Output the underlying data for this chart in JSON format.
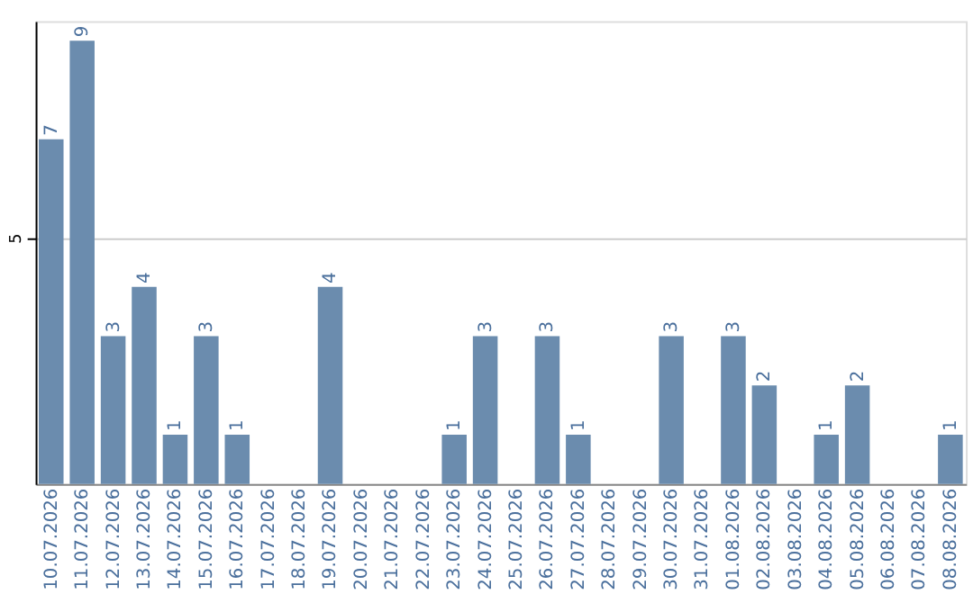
{
  "chart_data": {
    "type": "bar",
    "categories": [
      "10.07.2026",
      "11.07.2026",
      "12.07.2026",
      "13.07.2026",
      "14.07.2026",
      "15.07.2026",
      "16.07.2026",
      "17.07.2026",
      "18.07.2026",
      "19.07.2026",
      "20.07.2026",
      "21.07.2026",
      "22.07.2026",
      "23.07.2026",
      "24.07.2026",
      "25.07.2026",
      "26.07.2026",
      "27.07.2026",
      "28.07.2026",
      "29.07.2026",
      "30.07.2026",
      "31.07.2026",
      "01.08.2026",
      "02.08.2026",
      "03.08.2026",
      "04.08.2026",
      "05.08.2026",
      "06.08.2026",
      "07.08.2026",
      "08.08.2026"
    ],
    "values": [
      7,
      9,
      3,
      4,
      1,
      3,
      1,
      0,
      0,
      4,
      0,
      0,
      0,
      1,
      3,
      0,
      3,
      1,
      0,
      0,
      3,
      0,
      3,
      2,
      0,
      1,
      2,
      0,
      0,
      1
    ],
    "value_labels": [
      "7",
      "9",
      "3",
      "4",
      "1",
      "3",
      "1",
      null,
      null,
      "4",
      null,
      null,
      null,
      "1",
      "3",
      null,
      "3",
      "1",
      null,
      null,
      "3",
      null,
      "3",
      "2",
      null,
      "1",
      "2",
      null,
      null,
      "1"
    ],
    "color": "#6b8cae",
    "ylim": [
      0,
      9.4
    ],
    "yticks": [
      5
    ],
    "grid": "y"
  }
}
